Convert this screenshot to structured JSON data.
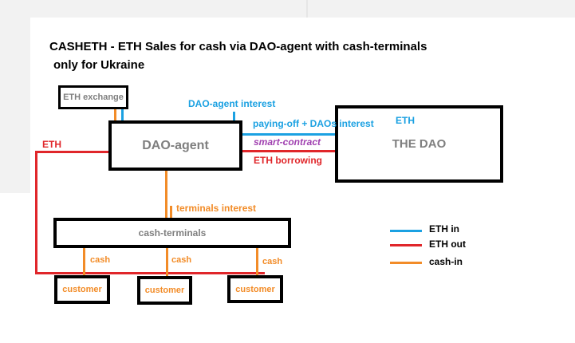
{
  "title_line1": "CASHETH - ETH Sales for cash via DAO-agent with cash-terminals",
  "title_line2": "only for Ukraine",
  "boxes": {
    "eth_exchange": "ETH exchange",
    "dao_agent": "DAO-agent",
    "the_dao": "THE DAO",
    "cash_terminals": "cash-terminals",
    "customer": "customer"
  },
  "labels": {
    "dao_agent_interest": "DAO-agent  interest",
    "paying_off": "paying-off + DAOs interest",
    "eth_right": "ETH",
    "smart_contract": "smart-contract",
    "eth_borrowing": "ETH borrowing",
    "eth_left": "ETH",
    "terminals_interest": "terminals interest",
    "cash": "cash"
  },
  "legend": {
    "eth_in": "ETH in",
    "eth_out": "ETH out",
    "cash_in": "cash-in"
  },
  "colors": {
    "eth_in": "#1ba1e2",
    "eth_out": "#e0262a",
    "cash_in": "#f28c28",
    "smart_contract": "#a040b0"
  }
}
